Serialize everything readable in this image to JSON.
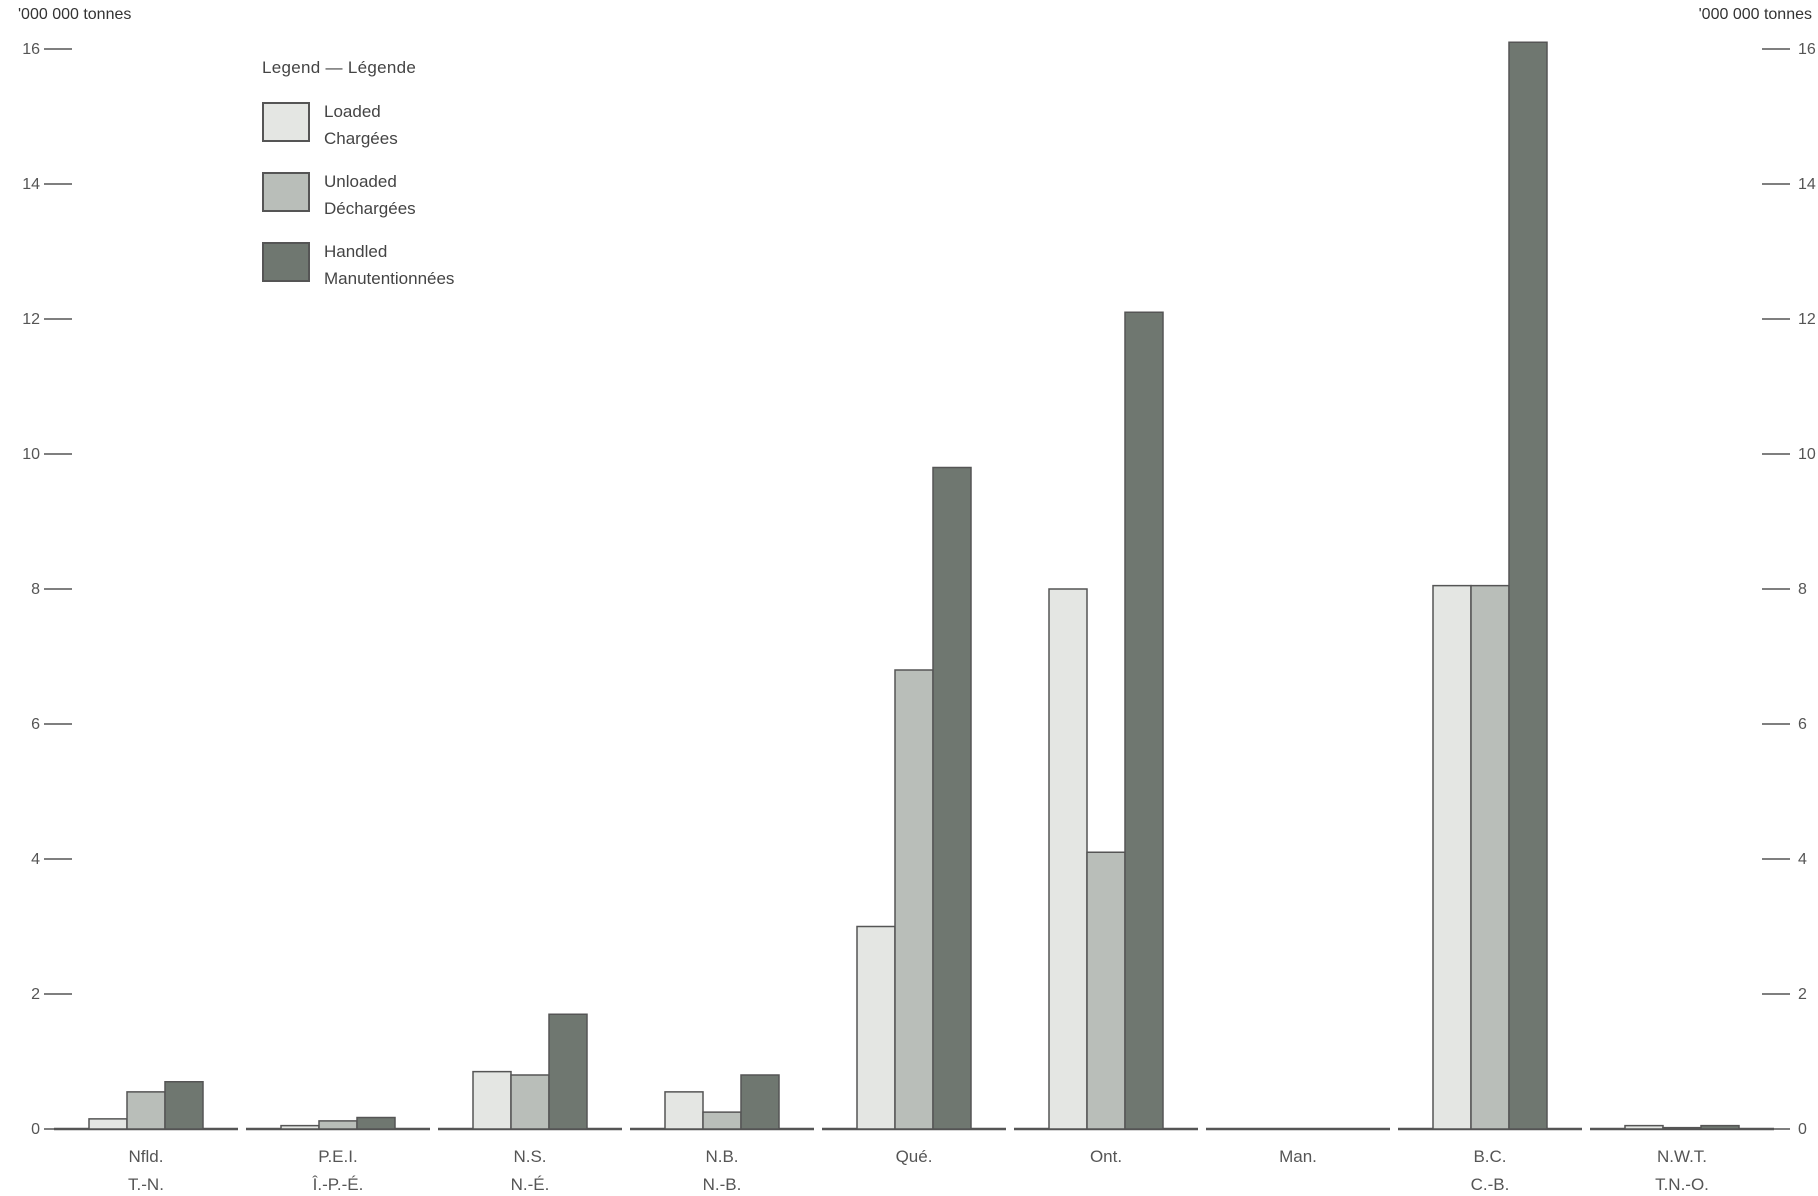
{
  "chart_data": {
    "type": "bar",
    "unit_label_left": "'000 000 tonnes",
    "unit_label_right": "'000 000 tonnes",
    "legend_title": "Legend — Légende",
    "ylim": [
      0,
      16
    ],
    "yticks": [
      0,
      2,
      4,
      6,
      8,
      10,
      12,
      14,
      16
    ],
    "categories": [
      {
        "en": "Nfld.",
        "fr": "T.-N."
      },
      {
        "en": "P.E.I.",
        "fr": "Î.-P.-É."
      },
      {
        "en": "N.S.",
        "fr": "N.-É."
      },
      {
        "en": "N.B.",
        "fr": "N.-B."
      },
      {
        "en": "Qué.",
        "fr": ""
      },
      {
        "en": "Ont.",
        "fr": ""
      },
      {
        "en": "Man.",
        "fr": ""
      },
      {
        "en": "B.C.",
        "fr": "C.-B."
      },
      {
        "en": "N.W.T.",
        "fr": "T.N.-O."
      }
    ],
    "series": [
      {
        "name": "Loaded",
        "name_fr": "Chargées",
        "color": "#e4e6e3",
        "values": [
          0.15,
          0.05,
          0.85,
          0.55,
          3.0,
          8.0,
          0.0,
          8.05,
          0.05
        ]
      },
      {
        "name": "Unloaded",
        "name_fr": "Déchargées",
        "color": "#b9beb9",
        "values": [
          0.55,
          0.12,
          0.8,
          0.25,
          6.8,
          4.1,
          0.0,
          8.05,
          0.02
        ]
      },
      {
        "name": "Handled",
        "name_fr": "Manutentionnées",
        "color": "#6f7770",
        "values": [
          0.7,
          0.17,
          1.7,
          0.8,
          9.8,
          12.1,
          0.0,
          16.1,
          0.05
        ]
      }
    ]
  }
}
